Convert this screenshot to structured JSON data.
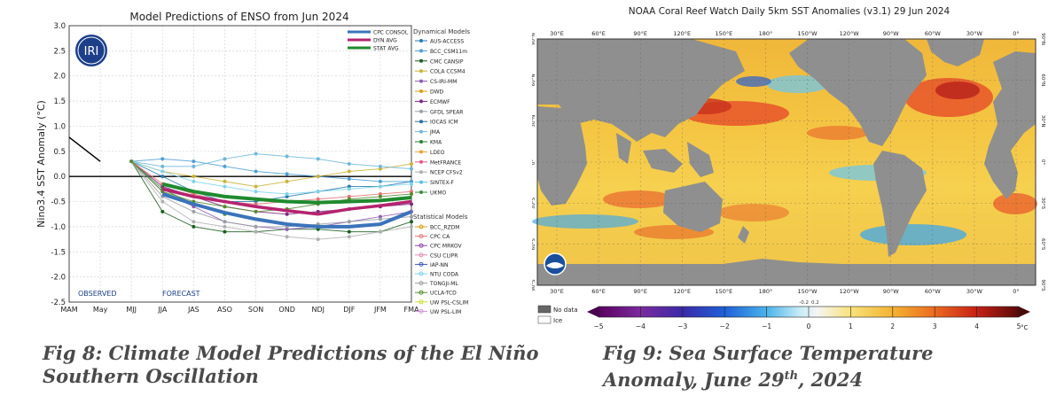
{
  "left_chart": {
    "title": "Model Predictions of ENSO from Jun 2024",
    "ylabel": "Nino3.4 SST Anomaly (°C)",
    "logo_text": "IRI",
    "observed_label": "OBSERVED",
    "forecast_label": "FORECAST",
    "avg_legend": [
      {
        "name": "CPC CONSOL",
        "color": "#3b73b9"
      },
      {
        "name": "DYN AVG",
        "color": "#b5246e"
      },
      {
        "name": "STAT AVG",
        "color": "#1f8a2e"
      }
    ],
    "dynamical_title": "Dynamical Models",
    "dynamical_models": [
      {
        "name": "AUS-ACCESS",
        "color": "#2a7ab0"
      },
      {
        "name": "BCC_CSM11m",
        "color": "#4f9fd4"
      },
      {
        "name": "CMC CANSIP",
        "color": "#1b5e20"
      },
      {
        "name": "COLA CCSM4",
        "color": "#c9b43a"
      },
      {
        "name": "CS-IRI-MM",
        "color": "#8e5bb4"
      },
      {
        "name": "DWD",
        "color": "#d4a017"
      },
      {
        "name": "ECMWF",
        "color": "#7b2a7b"
      },
      {
        "name": "GFDL SPEAR",
        "color": "#9aa0a6"
      },
      {
        "name": "IOCAS ICM",
        "color": "#2c6e9e"
      },
      {
        "name": "JMA",
        "color": "#6fb7d9"
      },
      {
        "name": "KMA",
        "color": "#2e7d32"
      },
      {
        "name": "LDEO",
        "color": "#e6a23c"
      },
      {
        "name": "MetFRANCE",
        "color": "#e05a8a"
      },
      {
        "name": "NCEP CFSv2",
        "color": "#b0b0b0"
      },
      {
        "name": "SINTEX-F",
        "color": "#5bc0de"
      },
      {
        "name": "UKMO",
        "color": "#388e3c"
      }
    ],
    "statistical_title": "Statistical Models",
    "statistical_models": [
      {
        "name": "BCC_RZDM",
        "color": "#d4a017"
      },
      {
        "name": "CPC CA",
        "color": "#e57373"
      },
      {
        "name": "CPC MRKOV",
        "color": "#8e44ad"
      },
      {
        "name": "CSU CLIPR",
        "color": "#e08fb8"
      },
      {
        "name": "IAP-NN",
        "color": "#3f51b5"
      },
      {
        "name": "NTU CODA",
        "color": "#7fd3e8"
      },
      {
        "name": "TONGJI-ML",
        "color": "#9e9e9e"
      },
      {
        "name": "UCLA-TCD",
        "color": "#558b2f"
      },
      {
        "name": "UW PSL-CSLIM",
        "color": "#cddc39"
      },
      {
        "name": "UW PSL-LIM",
        "color": "#ce93d8"
      }
    ]
  },
  "chart_data": [
    {
      "type": "line",
      "title": "Model Predictions of ENSO from Jun 2024",
      "xlabel": "",
      "ylabel": "Nino3.4 SST Anomaly (°C)",
      "categories": [
        "MAM",
        "May",
        "MJJ",
        "JJA",
        "JAS",
        "ASO",
        "SON",
        "OND",
        "NDJ",
        "DJF",
        "JFM",
        "FMA"
      ],
      "yticks": [
        "3.0",
        "2.5",
        "2.0",
        "1.5",
        "1.0",
        "0.5",
        "0.0",
        "-0.5",
        "-1.0",
        "-1.5",
        "-2.0",
        "-2.5"
      ],
      "ylim": [
        -2.5,
        3.0
      ],
      "grid": true,
      "legend": "right",
      "observed": [
        0.78,
        0.3
      ],
      "series": [
        {
          "name": "CPC CONSOL",
          "values": [
            null,
            null,
            null,
            -0.35,
            -0.55,
            -0.72,
            -0.85,
            -0.95,
            -1.0,
            -1.0,
            -0.95,
            -0.7
          ],
          "color": "#3b73b9",
          "width": 4
        },
        {
          "name": "DYN AVG",
          "values": [
            null,
            null,
            null,
            -0.25,
            -0.4,
            -0.5,
            -0.6,
            -0.68,
            -0.75,
            -0.65,
            -0.58,
            -0.5
          ],
          "color": "#b5246e",
          "width": 3.5
        },
        {
          "name": "STAT AVG",
          "values": [
            null,
            null,
            null,
            -0.15,
            -0.3,
            -0.4,
            -0.45,
            -0.5,
            -0.52,
            -0.5,
            -0.48,
            -0.42
          ],
          "color": "#1f8a2e",
          "width": 4
        },
        {
          "name": "AUS-ACCESS",
          "values": [
            null,
            null,
            0.3,
            0.0,
            -0.3,
            -0.5,
            -0.5,
            -0.4,
            -0.3,
            -0.2,
            -0.2,
            -0.1
          ],
          "color": "#2a7ab0"
        },
        {
          "name": "BCC_CSM11m",
          "values": [
            null,
            null,
            0.3,
            0.35,
            0.3,
            0.2,
            0.1,
            0.05,
            0.0,
            -0.05,
            -0.1,
            -0.1
          ],
          "color": "#4f9fd4"
        },
        {
          "name": "CMC CANSIP",
          "values": [
            null,
            null,
            0.3,
            -0.7,
            -1.0,
            -1.1,
            -1.1,
            -1.05,
            -1.05,
            -1.1,
            -1.1,
            -0.9
          ],
          "color": "#1b5e20"
        },
        {
          "name": "COLA CCSM4",
          "values": [
            null,
            null,
            0.3,
            0.1,
            0.0,
            -0.1,
            -0.2,
            -0.1,
            0.0,
            0.1,
            0.15,
            0.25
          ],
          "color": "#c9b43a"
        },
        {
          "name": "CS-IRI-MM",
          "values": [
            null,
            null,
            0.3,
            -0.3,
            -0.6,
            -0.9,
            -1.0,
            -1.05,
            -1.0,
            -0.9,
            -0.8,
            -0.7
          ],
          "color": "#8e5bb4"
        },
        {
          "name": "ECMWF",
          "values": [
            null,
            null,
            0.3,
            -0.2,
            -0.4,
            -0.6,
            -0.7,
            -0.75,
            -0.7,
            -0.65,
            -0.6,
            -0.55
          ],
          "color": "#7b2a7b"
        },
        {
          "name": "GFDL SPEAR",
          "values": [
            null,
            null,
            0.3,
            -0.4,
            -0.7,
            -0.9,
            -1.0,
            -1.0,
            -0.95,
            -0.9,
            -0.85,
            -0.8
          ],
          "color": "#9aa0a6"
        },
        {
          "name": "JMA",
          "values": [
            null,
            null,
            0.3,
            0.2,
            0.2,
            0.35,
            0.45,
            0.4,
            0.35,
            0.25,
            0.2,
            0.15
          ],
          "color": "#6fb7d9"
        },
        {
          "name": "NCEP CFSv2",
          "values": [
            null,
            null,
            0.3,
            -0.5,
            -0.9,
            -1.0,
            -1.1,
            -1.2,
            -1.25,
            -1.2,
            -1.1,
            -1.0
          ],
          "color": "#b0b0b0"
        },
        {
          "name": "UKMO",
          "values": [
            null,
            null,
            0.3,
            -0.25,
            -0.55,
            -0.75,
            null,
            null,
            null,
            null,
            null,
            null
          ],
          "color": "#388e3c"
        },
        {
          "name": "CPC CA",
          "values": [
            null,
            null,
            0.3,
            -0.15,
            -0.35,
            -0.5,
            -0.55,
            -0.5,
            -0.45,
            -0.4,
            -0.35,
            -0.3
          ],
          "color": "#e57373"
        },
        {
          "name": "NTU CODA",
          "values": [
            null,
            null,
            0.3,
            0.1,
            -0.1,
            -0.2,
            -0.3,
            -0.35,
            -0.3,
            -0.25,
            -0.2,
            -0.15
          ],
          "color": "#7fd3e8"
        },
        {
          "name": "UCLA-TCD",
          "values": [
            null,
            null,
            0.3,
            -0.3,
            -0.5,
            -0.6,
            -0.7,
            -0.65,
            -0.55,
            -0.45,
            -0.4,
            -0.35
          ],
          "color": "#558b2f"
        }
      ]
    },
    {
      "type": "heatmap",
      "title": "NOAA Coral Reef Watch Daily 5km SST Anomalies  (v3.1)   29 Jun 2024",
      "top_lon_ticks": [
        "30°E",
        "60°E",
        "90°E",
        "120°E",
        "150°E",
        "180°",
        "150°W",
        "120°W",
        "90°W",
        "60°W",
        "30°W",
        "0°"
      ],
      "bottom_lon_ticks": [
        "30°E",
        "60°E",
        "90°E",
        "120°E",
        "150°E",
        "180°",
        "150°W",
        "120°W",
        "90°W",
        "60°W",
        "30°W",
        "0°"
      ],
      "left_lat_ticks": [
        "90°N",
        "60°N",
        "30°N",
        "0°",
        "30°S",
        "60°S",
        "90°S"
      ],
      "right_lat_ticks": [
        "90°N",
        "60°N",
        "30°N",
        "0°",
        "30°S",
        "60°S",
        "90°S"
      ],
      "colorbar_ticks": [
        "−5",
        "−4",
        "−3",
        "−2",
        "−1",
        "0",
        "1",
        "2",
        "3",
        "4",
        "5"
      ],
      "colorbar_small_ticks": [
        "-0.2",
        "0.2"
      ],
      "colorbar_unit": "°C",
      "colorbar_range": [
        -5,
        5
      ],
      "legend_no_data": "No data",
      "legend_ice": "Ice"
    }
  ],
  "captions": {
    "left_line1": "Fig 8:  Climate Model Predictions of the El Niño",
    "left_line2": "Southern Oscillation",
    "right_line1": "Fig 9: Sea Surface Temperature",
    "right_line2_pre": "Anomaly, June 29",
    "right_line2_sup": "th",
    "right_line2_post": ", 2024"
  },
  "colors": {
    "land": "#8f8f8f",
    "ocean_warm": "#f3c23a",
    "ocean_hot": "#e8542a",
    "ocean_cool": "#6fc6e8",
    "ocean_cold": "#2a5fd0"
  }
}
